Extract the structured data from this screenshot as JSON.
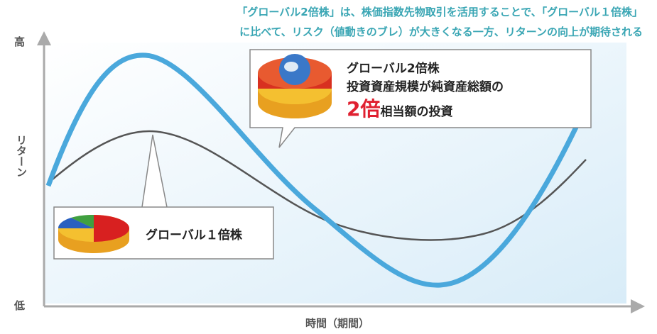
{
  "header": {
    "lines": [
      "「グローバル2倍株」は、株価指数先物取引を活用することで、「グローバル１倍株」",
      "に比べて、リスク（値動きのブレ）が大きくなる一方、リターンの向上が期待される"
    ]
  },
  "y_axis": {
    "high": "高",
    "label": "リターン",
    "low": "低"
  },
  "x_axis": {
    "label": "時間（期間）"
  },
  "callouts": [
    {
      "title": "グローバル2倍株",
      "line": "投資資産規模が純資産総額の",
      "emphasis": "2倍",
      "suffix": "相当額の投資"
    },
    {
      "title": "グローバル１倍株"
    }
  ]
}
